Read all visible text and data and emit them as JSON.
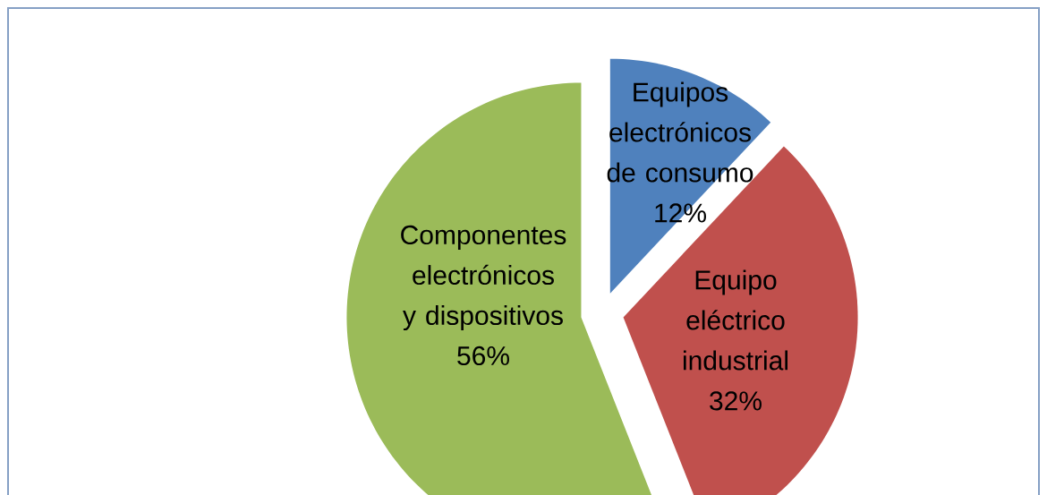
{
  "chart_data": {
    "type": "pie",
    "categories": [
      "Equipos electrónicos de consumo",
      "Equipo eléctrico industrial",
      "Componentes electrónicos y dispositivos"
    ],
    "values": [
      12,
      32,
      56
    ],
    "value_labels": [
      "12%",
      "32%",
      "56%"
    ],
    "colors": [
      "#4f81bd",
      "#c0504d",
      "#9bbb59"
    ]
  }
}
